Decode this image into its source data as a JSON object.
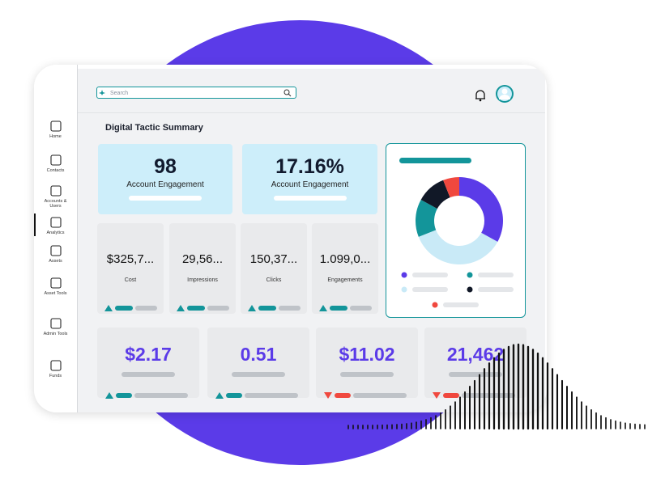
{
  "search": {
    "placeholder": "Search"
  },
  "nav": [
    "Home",
    "Contacts",
    "Accounts & Users",
    "Analytics",
    "Assets",
    "Asset Tools",
    "Admin Tools",
    "Funds"
  ],
  "title": "Digital Tactic Summary",
  "highlights": [
    {
      "value": "98",
      "label": "Account Engagement"
    },
    {
      "value": "17.16%",
      "label": "Account Engagement"
    }
  ],
  "metrics": [
    {
      "value": "$325,7...",
      "label": "Cost"
    },
    {
      "value": "29,56...",
      "label": "Impressions"
    },
    {
      "value": "150,37...",
      "label": "Clicks"
    },
    {
      "value": "1.099,0...",
      "label": "Engagements"
    }
  ],
  "kpis": [
    "$2.17",
    "0.51",
    "$11.02",
    "21,462"
  ],
  "donut": {
    "type": "pie",
    "values": [
      33,
      36,
      14,
      11,
      6
    ],
    "colors": [
      "#5b3be8",
      "#c9eaf7",
      "#13959a",
      "#111827",
      "#f0483e"
    ]
  }
}
